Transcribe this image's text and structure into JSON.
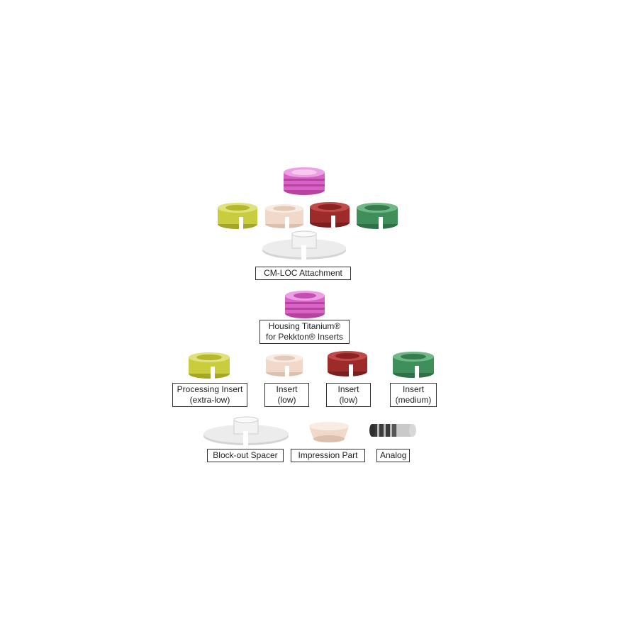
{
  "labels": {
    "cm_loc_attachment": "CM-LOC Attachment",
    "housing": [
      "Housing Titanium®",
      "for Pekkton® Inserts"
    ],
    "processing_insert": [
      "Processing Insert",
      "(extra-low)"
    ],
    "insert_low_beige": [
      "Insert",
      "(low)"
    ],
    "insert_low_red": [
      "Insert",
      "(low)"
    ],
    "insert_medium": [
      "Insert",
      "(medium)"
    ],
    "blockout_spacer": "Block-out Spacer",
    "impression_part": "Impression Part",
    "analog": "Analog"
  },
  "colors": {
    "housing_pink": "#d763c8",
    "yellow": "#c9cc3c",
    "beige": "#f0d9c8",
    "red": "#9c2b2a",
    "green": "#3f8f5a",
    "spacer": "#e6e6e6",
    "analog": "#555555"
  }
}
